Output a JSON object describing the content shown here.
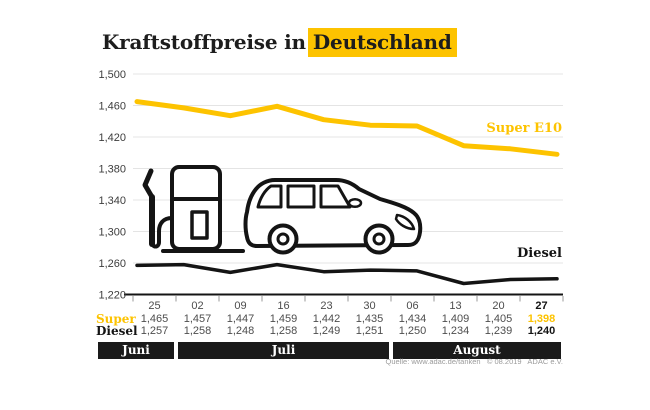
{
  "title": {
    "prefix": "Kraftstoffpreise in",
    "highlight": "Deutschland"
  },
  "source": {
    "text": "Quelle: www.adac.de/tanken   © 08.2019   ADAC e.V."
  },
  "colors": {
    "accent_yellow": "#FDC300",
    "line_black": "#141414",
    "gridline": "#e4e4e4",
    "month_band_bg": "#1a1a1a",
    "value_text": "#4d4d4d"
  },
  "chart_data": {
    "type": "line",
    "title": "Kraftstoffpreise in Deutschland",
    "xlabel": "",
    "ylabel": "",
    "ylim": [
      1220,
      1500
    ],
    "grid": "horizontal",
    "legend_position": "line-end-labels",
    "x_tick_labels": [
      "25",
      "02",
      "09",
      "16",
      "23",
      "30",
      "06",
      "13",
      "20",
      "27"
    ],
    "yticks": [
      1500,
      1460,
      1420,
      1380,
      1340,
      1300,
      1260,
      1220
    ],
    "ytick_labels": [
      "1,500",
      "1,460",
      "1,420",
      "1,380",
      "1,340",
      "1,300",
      "1,260",
      "1,220"
    ],
    "series": [
      {
        "name": "Super",
        "label": "Super",
        "end_label": "Super E10",
        "color": "#FDC300",
        "values": [
          1465,
          1457,
          1447,
          1459,
          1442,
          1435,
          1434,
          1409,
          1405,
          1398
        ],
        "values_display": [
          "1,465",
          "1,457",
          "1,447",
          "1,459",
          "1,442",
          "1,435",
          "1,434",
          "1,409",
          "1,405",
          "1,398"
        ]
      },
      {
        "name": "Diesel",
        "label": "Diesel",
        "end_label": "Diesel",
        "color": "#141414",
        "values": [
          1257,
          1258,
          1248,
          1258,
          1249,
          1251,
          1250,
          1234,
          1239,
          1240
        ],
        "values_display": [
          "1,257",
          "1,258",
          "1,248",
          "1,258",
          "1,249",
          "1,251",
          "1,250",
          "1,234",
          "1,239",
          "1,240"
        ]
      }
    ],
    "months": [
      {
        "label": "Juni",
        "cols": [
          0,
          0
        ]
      },
      {
        "label": "Juli",
        "cols": [
          1,
          5
        ]
      },
      {
        "label": "August",
        "cols": [
          6,
          9
        ]
      }
    ]
  }
}
